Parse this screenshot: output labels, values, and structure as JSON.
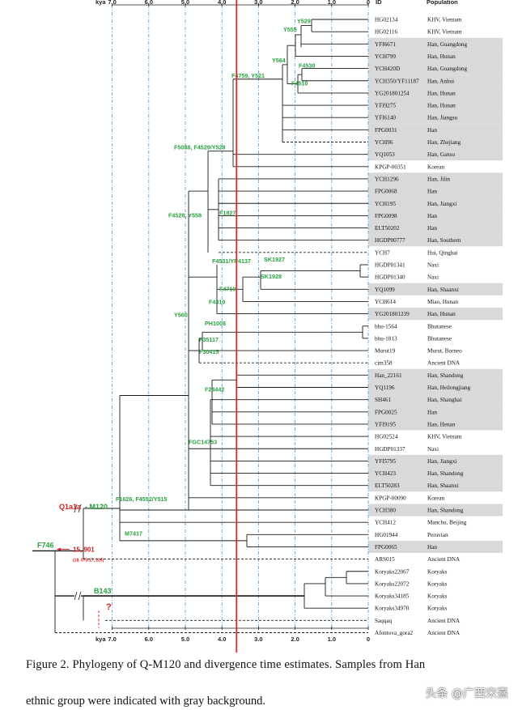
{
  "axis": {
    "unit": "kya",
    "ticks": [
      "7.0",
      "6.0",
      "5.0",
      "4.0",
      "3.0",
      "2.0",
      "1.0",
      "0"
    ],
    "tick_values": [
      7,
      6,
      5,
      4,
      3,
      2,
      1,
      0
    ],
    "id_header": "ID",
    "population_header": "Population"
  },
  "samples": [
    {
      "id": "HG02134",
      "population": "KHV, Vietnam",
      "han": false
    },
    {
      "id": "HG02116",
      "population": "KHV, Vietnam",
      "han": false
    },
    {
      "id": "YFI6671",
      "population": "Han, Guangdong",
      "han": true
    },
    {
      "id": "YCH799",
      "population": "Han, Hunan",
      "han": true
    },
    {
      "id": "YCH420D",
      "population": "Han, Guangdong",
      "han": true
    },
    {
      "id": "YCH350/YF11187",
      "population": "Han, Anhui",
      "han": true
    },
    {
      "id": "YG201801254",
      "population": "Han, Hunan",
      "han": true
    },
    {
      "id": "YFI9275",
      "population": "Han, Hunan",
      "han": true
    },
    {
      "id": "YFI6140",
      "population": "Han, Jiangsu",
      "han": true
    },
    {
      "id": "FPG0031",
      "population": "Han",
      "han": true
    },
    {
      "id": "YCH96",
      "population": "Han, Zhejiang",
      "han": true
    },
    {
      "id": "YQ1053",
      "population": "Han, Gansu",
      "han": true
    },
    {
      "id": "KPGP-00351",
      "population": "Korean",
      "han": false
    },
    {
      "id": "YCH1296",
      "population": "Han, Jilin",
      "han": true
    },
    {
      "id": "FPG0068",
      "population": "Han",
      "han": true
    },
    {
      "id": "YCH195",
      "population": "Han, Jiangxi",
      "han": true
    },
    {
      "id": "FPG0098",
      "population": "Han",
      "han": true
    },
    {
      "id": "ELT50202",
      "population": "Han",
      "han": true
    },
    {
      "id": "HGDP00777",
      "population": "Han, Southern",
      "han": true
    },
    {
      "id": "YCH7",
      "population": "Hui, Qinghai",
      "han": false
    },
    {
      "id": "HGDP01341",
      "population": "Naxi",
      "han": false
    },
    {
      "id": "HGDP01340",
      "population": "Naxi",
      "han": false
    },
    {
      "id": "YQ1099",
      "population": "Han, Shaanxi",
      "han": true
    },
    {
      "id": "YCH614",
      "population": "Miao, Hunan",
      "han": false
    },
    {
      "id": "YG201801239",
      "population": "Han, Hunan",
      "han": true
    },
    {
      "id": "bhu-1564",
      "population": "Bhutanese",
      "han": false
    },
    {
      "id": "bhu-1813",
      "population": "Bhutanese",
      "han": false
    },
    {
      "id": "Murut19",
      "population": "Murut, Burneo",
      "han": false
    },
    {
      "id": "cim358",
      "population": "Ancient DNA",
      "han": false
    },
    {
      "id": "Han_22161",
      "population": "Han, Shandong",
      "han": true
    },
    {
      "id": "YQ1196",
      "population": "Han, Heilongjiang",
      "han": true
    },
    {
      "id": "SH461",
      "population": "Han, Shanghai",
      "han": true
    },
    {
      "id": "FPG0025",
      "population": "Han",
      "han": true
    },
    {
      "id": "YFI9195",
      "population": "Han, Henan",
      "han": true
    },
    {
      "id": "HG02524",
      "population": "KHV, Vietnam",
      "han": false
    },
    {
      "id": "HGDP01337",
      "population": "Naxi",
      "han": false
    },
    {
      "id": "YFI5795",
      "population": "Han, Jiangxi",
      "han": true
    },
    {
      "id": "YCH423",
      "population": "Han, Shandong",
      "han": true
    },
    {
      "id": "ELT50283",
      "population": "Han, Shaanxi",
      "han": true
    },
    {
      "id": "KPGP-00090",
      "population": "Korean",
      "han": false
    },
    {
      "id": "YCH380",
      "population": "Han, Shandong",
      "han": true
    },
    {
      "id": "YCH412",
      "population": "Manchu, Beijing",
      "han": false
    },
    {
      "id": "HG01944",
      "population": "Peruvian",
      "han": false
    },
    {
      "id": "FPG0065",
      "population": "Han",
      "han": true
    },
    {
      "id": "ARS015",
      "population": "Ancient DNA",
      "han": false
    },
    {
      "id": "Koryaks22067",
      "population": "Koryaks",
      "han": false
    },
    {
      "id": "Koryaks22072",
      "population": "Koryaks",
      "han": false
    },
    {
      "id": "Koryaks34185",
      "population": "Koryaks",
      "han": false
    },
    {
      "id": "Koryaks34970",
      "population": "Koryaks",
      "han": false
    },
    {
      "id": "Saqqaq",
      "population": "Ancient DNA",
      "han": false
    },
    {
      "id": "Afontova_gora2",
      "population": "Ancient DNA",
      "han": false
    }
  ],
  "node_labels": {
    "Y529": "Y529",
    "Y555": "Y555",
    "Y564": "Y564",
    "F4530": "F4530",
    "F4510": "F4510",
    "F4759_Y521": "F4759, Y521",
    "F5088": "F5088, F4529/Y528",
    "F4528": "F4528, Y558",
    "F1827": "F1827",
    "F4531": "F4531/YP4137",
    "SK1927": "SK1927",
    "SK1928": "SK1928",
    "F4719": "F4719",
    "F4310": "F4310",
    "Y560": "Y560",
    "PH1008": "PH1008",
    "F35117": "F35117",
    "F30415": "F30415",
    "F24442": "F24442",
    "FGC14753": "FGC14753",
    "F1626": "F1626, F4552/Y515",
    "M7417": "M7417",
    "Q1a1a": "Q1a1a",
    "M120": "- M120",
    "F746": "F746",
    "B143": "B143",
    "date_main": "15, 901",
    "date_ci": "(18, 073-17, 205)",
    "question": "?"
  },
  "colors": {
    "tree": "#1a1a1a",
    "node_label": "#2aa040",
    "marker_red": "#d42020",
    "highlight_line": "#e02a2a",
    "grid": "#4a9ad8",
    "han_background": "#d9d9d9"
  },
  "highlight_line_kya": 3.6,
  "caption": {
    "line1": "Figure 2. Phylogeny of Q-M120 and divergence time estimates. Samples from Han",
    "line2": "ethnic group were indicated with gray background."
  },
  "watermark": "头条 @广西宋熹"
}
